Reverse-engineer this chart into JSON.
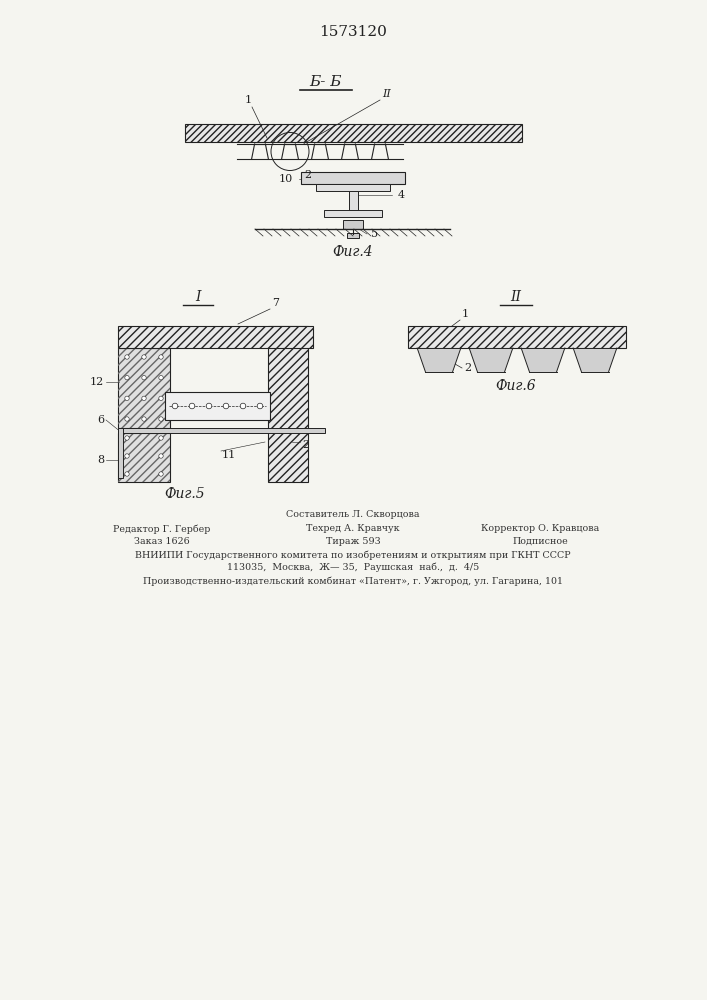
{
  "patent_number": "1573120",
  "fig4_label": "Фиг.4",
  "fig5_label": "Фиг.5",
  "fig6_label": "Фиг.6",
  "section_label": "Б- Б",
  "section_I": "I",
  "section_II": "II",
  "footer_line1": "Составитель Л. Скворцова",
  "footer_line2_left": "Редактор Г. Гербер",
  "footer_line2_mid": "Техред А. Кравчук",
  "footer_line2_right": "Корректор О. Кравцова",
  "footer_line3_left": "Заказ 1626",
  "footer_line3_mid": "Тираж 593",
  "footer_line3_right": "Подписное",
  "footer_line4": "ВНИИПИ Государственного комитета по изобретениям и открытиям при ГКНТ СССР",
  "footer_line5": "113035,  Москва,  Ж— 35,  Раушская  наб.,  д.  4/5",
  "footer_line6": "Производственно-издательский комбинат «Патент», г. Ужгород, ул. Гагарина, 101",
  "bg_color": "#f5f5f0",
  "line_color": "#222222",
  "hatch_color": "#444444"
}
